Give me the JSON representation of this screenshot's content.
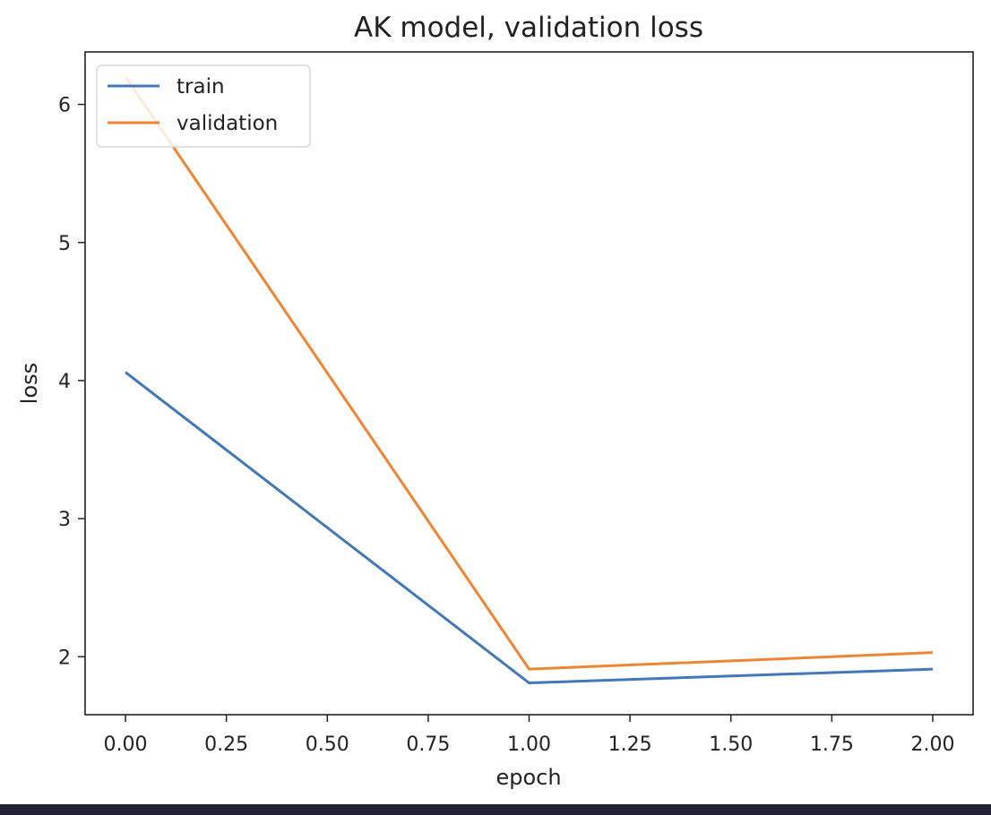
{
  "chart_data": {
    "type": "line",
    "title": "AK model, validation loss",
    "xlabel": "epoch",
    "ylabel": "loss",
    "x": [
      0,
      1,
      2
    ],
    "series": [
      {
        "name": "train",
        "values": [
          4.06,
          1.81,
          1.91
        ],
        "color": "#4477b5"
      },
      {
        "name": "validation",
        "values": [
          6.2,
          1.91,
          2.03
        ],
        "color": "#ee8534"
      }
    ],
    "xlim": [
      -0.1,
      2.1
    ],
    "ylim": [
      1.58,
      6.38
    ],
    "xticks": [
      0,
      0.25,
      0.5,
      0.75,
      1,
      1.25,
      1.5,
      1.75,
      2
    ],
    "xtick_labels": [
      "0.00",
      "0.25",
      "0.50",
      "0.75",
      "1.00",
      "1.25",
      "1.50",
      "1.75",
      "2.00"
    ],
    "yticks": [
      2,
      3,
      4,
      5,
      6
    ],
    "ytick_labels": [
      "2",
      "3",
      "4",
      "5",
      "6"
    ],
    "legend_position": "upper-left",
    "grid": false
  }
}
